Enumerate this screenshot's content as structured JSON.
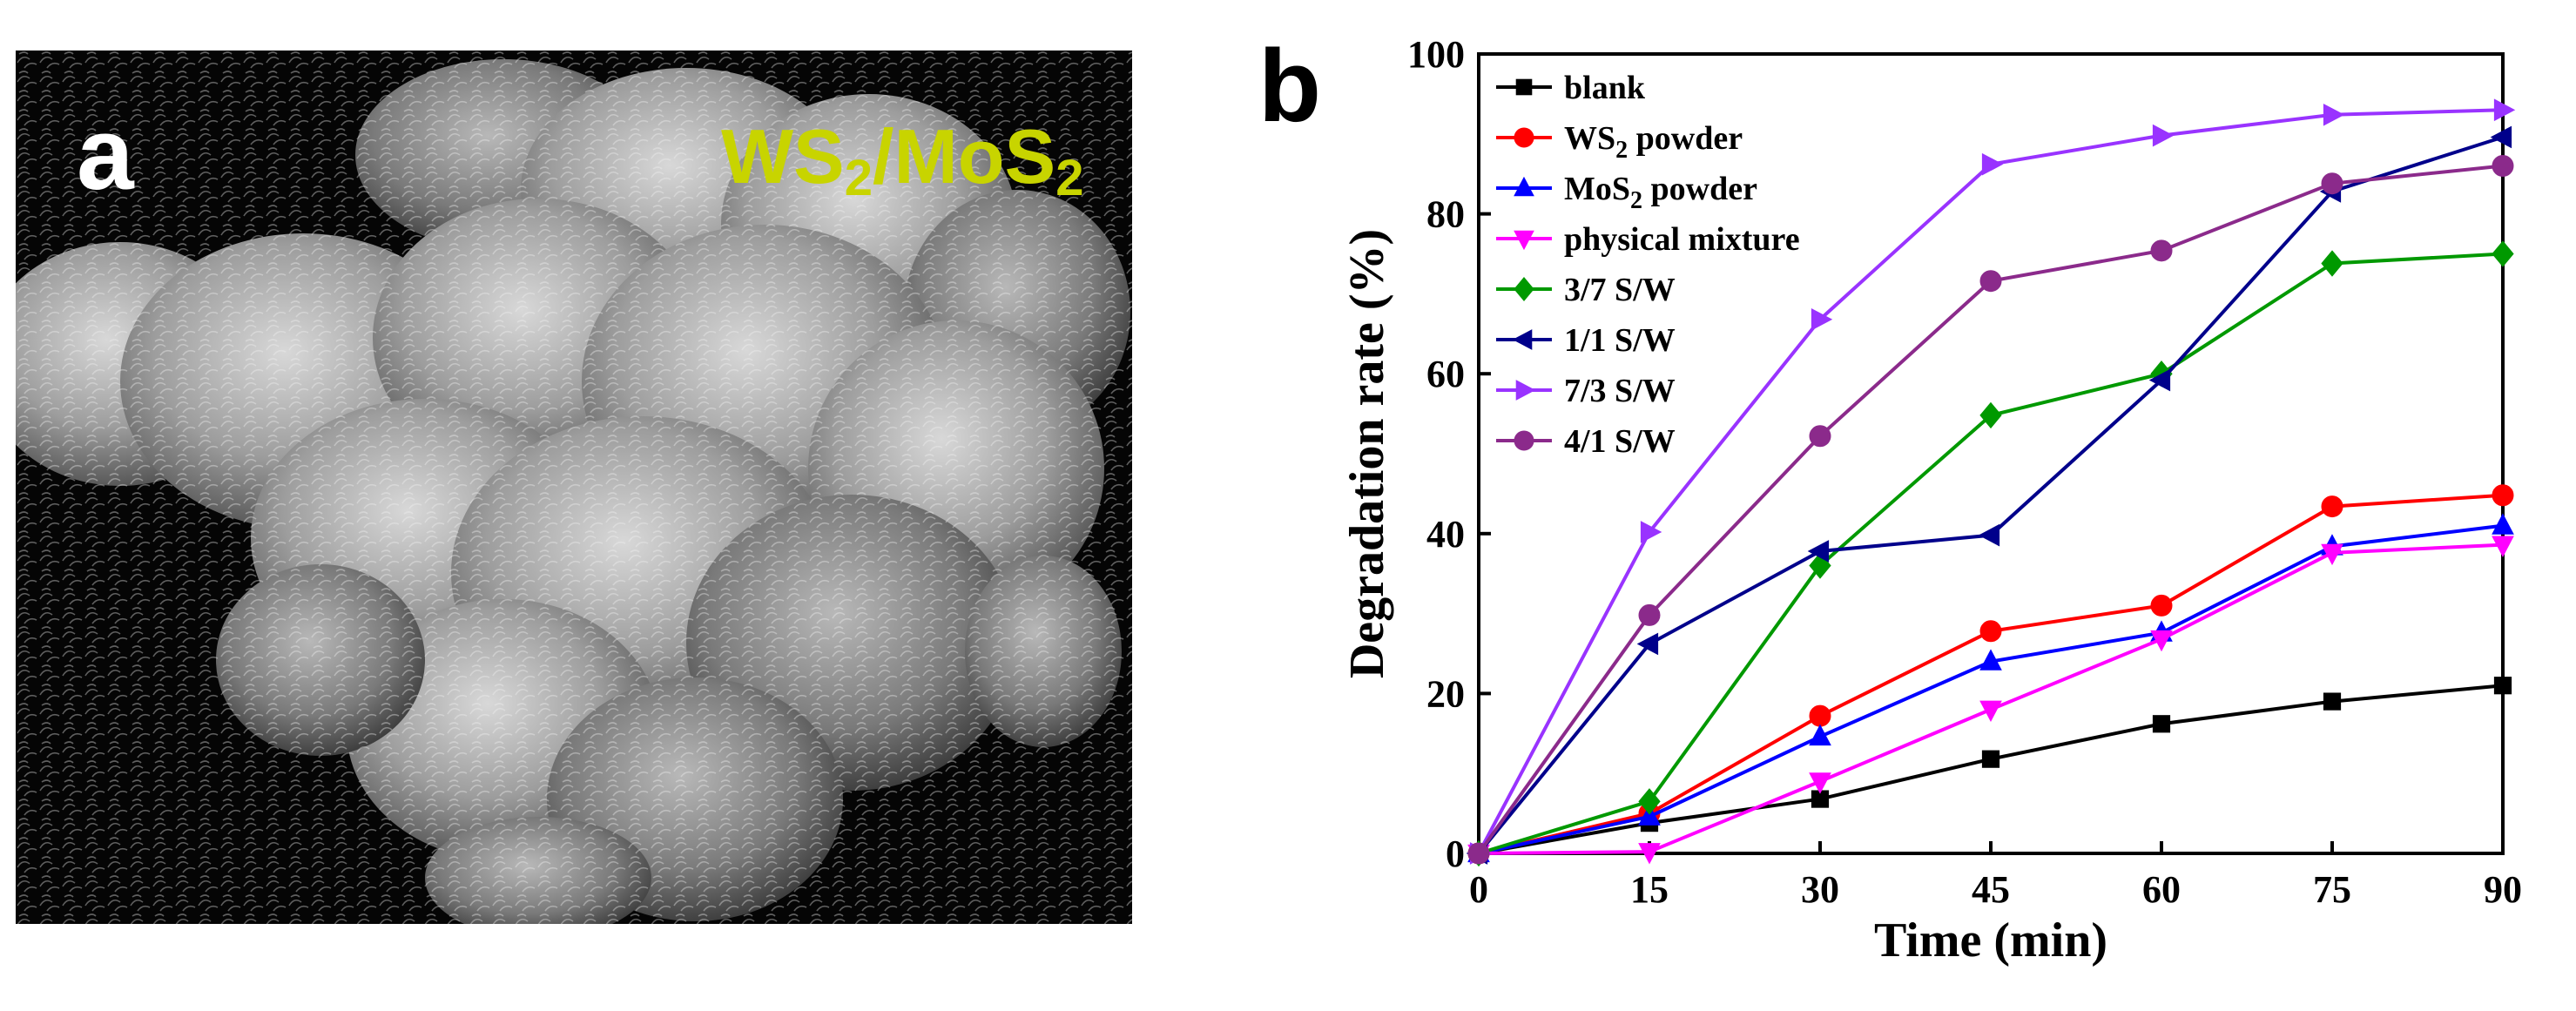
{
  "panel_a": {
    "letter": "a",
    "material_label": "WS",
    "material_label_sub1": "2",
    "material_label_sep": "/MoS",
    "material_label_sub2": "2",
    "background_color": "#000000",
    "label_color": "#c8d400"
  },
  "panel_b": {
    "letter": "b"
  },
  "chart_data": {
    "type": "line",
    "xlabel": "Time (min)",
    "ylabel": "Degradation rate (%)",
    "xlim": [
      0,
      90
    ],
    "ylim": [
      0,
      100
    ],
    "x_ticks": [
      0,
      15,
      30,
      45,
      60,
      75,
      90
    ],
    "y_ticks": [
      0,
      20,
      40,
      60,
      80,
      100
    ],
    "grid": false,
    "legend_position": "top-left",
    "x": [
      0,
      15,
      30,
      45,
      60,
      75,
      90
    ],
    "series": [
      {
        "name": "blank",
        "name_sub": "",
        "name_tail": "",
        "color": "#000000",
        "marker": "square",
        "values": [
          0,
          3.8,
          6.8,
          11.8,
          16.2,
          19.0,
          21.0
        ]
      },
      {
        "name": "WS",
        "name_sub": "2",
        "name_tail": " powder",
        "color": "#ff0000",
        "marker": "circle",
        "values": [
          0,
          5.0,
          17.2,
          27.8,
          31.0,
          43.4,
          44.8
        ]
      },
      {
        "name": "MoS",
        "name_sub": "2",
        "name_tail": " powder",
        "color": "#0000ff",
        "marker": "triangle-up",
        "values": [
          0,
          4.6,
          14.6,
          24.0,
          27.6,
          38.4,
          41.0
        ]
      },
      {
        "name": "physical mixture",
        "name_sub": "",
        "name_tail": "",
        "color": "#ff00ff",
        "marker": "triangle-down",
        "values": [
          0,
          0.2,
          9.0,
          18.0,
          26.8,
          37.6,
          38.6
        ]
      },
      {
        "name": "3/7 S/W",
        "name_sub": "",
        "name_tail": "",
        "color": "#009900",
        "marker": "diamond",
        "values": [
          0,
          6.5,
          36.0,
          54.8,
          60.0,
          73.8,
          75.0
        ]
      },
      {
        "name": "1/1 S/W",
        "name_sub": "",
        "name_tail": "",
        "color": "#00008b",
        "marker": "triangle-left",
        "values": [
          0,
          26.2,
          37.8,
          39.8,
          59.2,
          82.8,
          89.6
        ]
      },
      {
        "name": "7/3 S/W",
        "name_sub": "",
        "name_tail": "",
        "color": "#9933ff",
        "marker": "triangle-right",
        "values": [
          0,
          40.2,
          66.8,
          86.2,
          89.8,
          92.4,
          93.0
        ]
      },
      {
        "name": "4/1 S/W",
        "name_sub": "",
        "name_tail": "",
        "color": "#8b2a8b",
        "marker": "circle",
        "values": [
          0,
          29.8,
          52.2,
          71.6,
          75.4,
          83.8,
          86.0
        ]
      }
    ]
  }
}
